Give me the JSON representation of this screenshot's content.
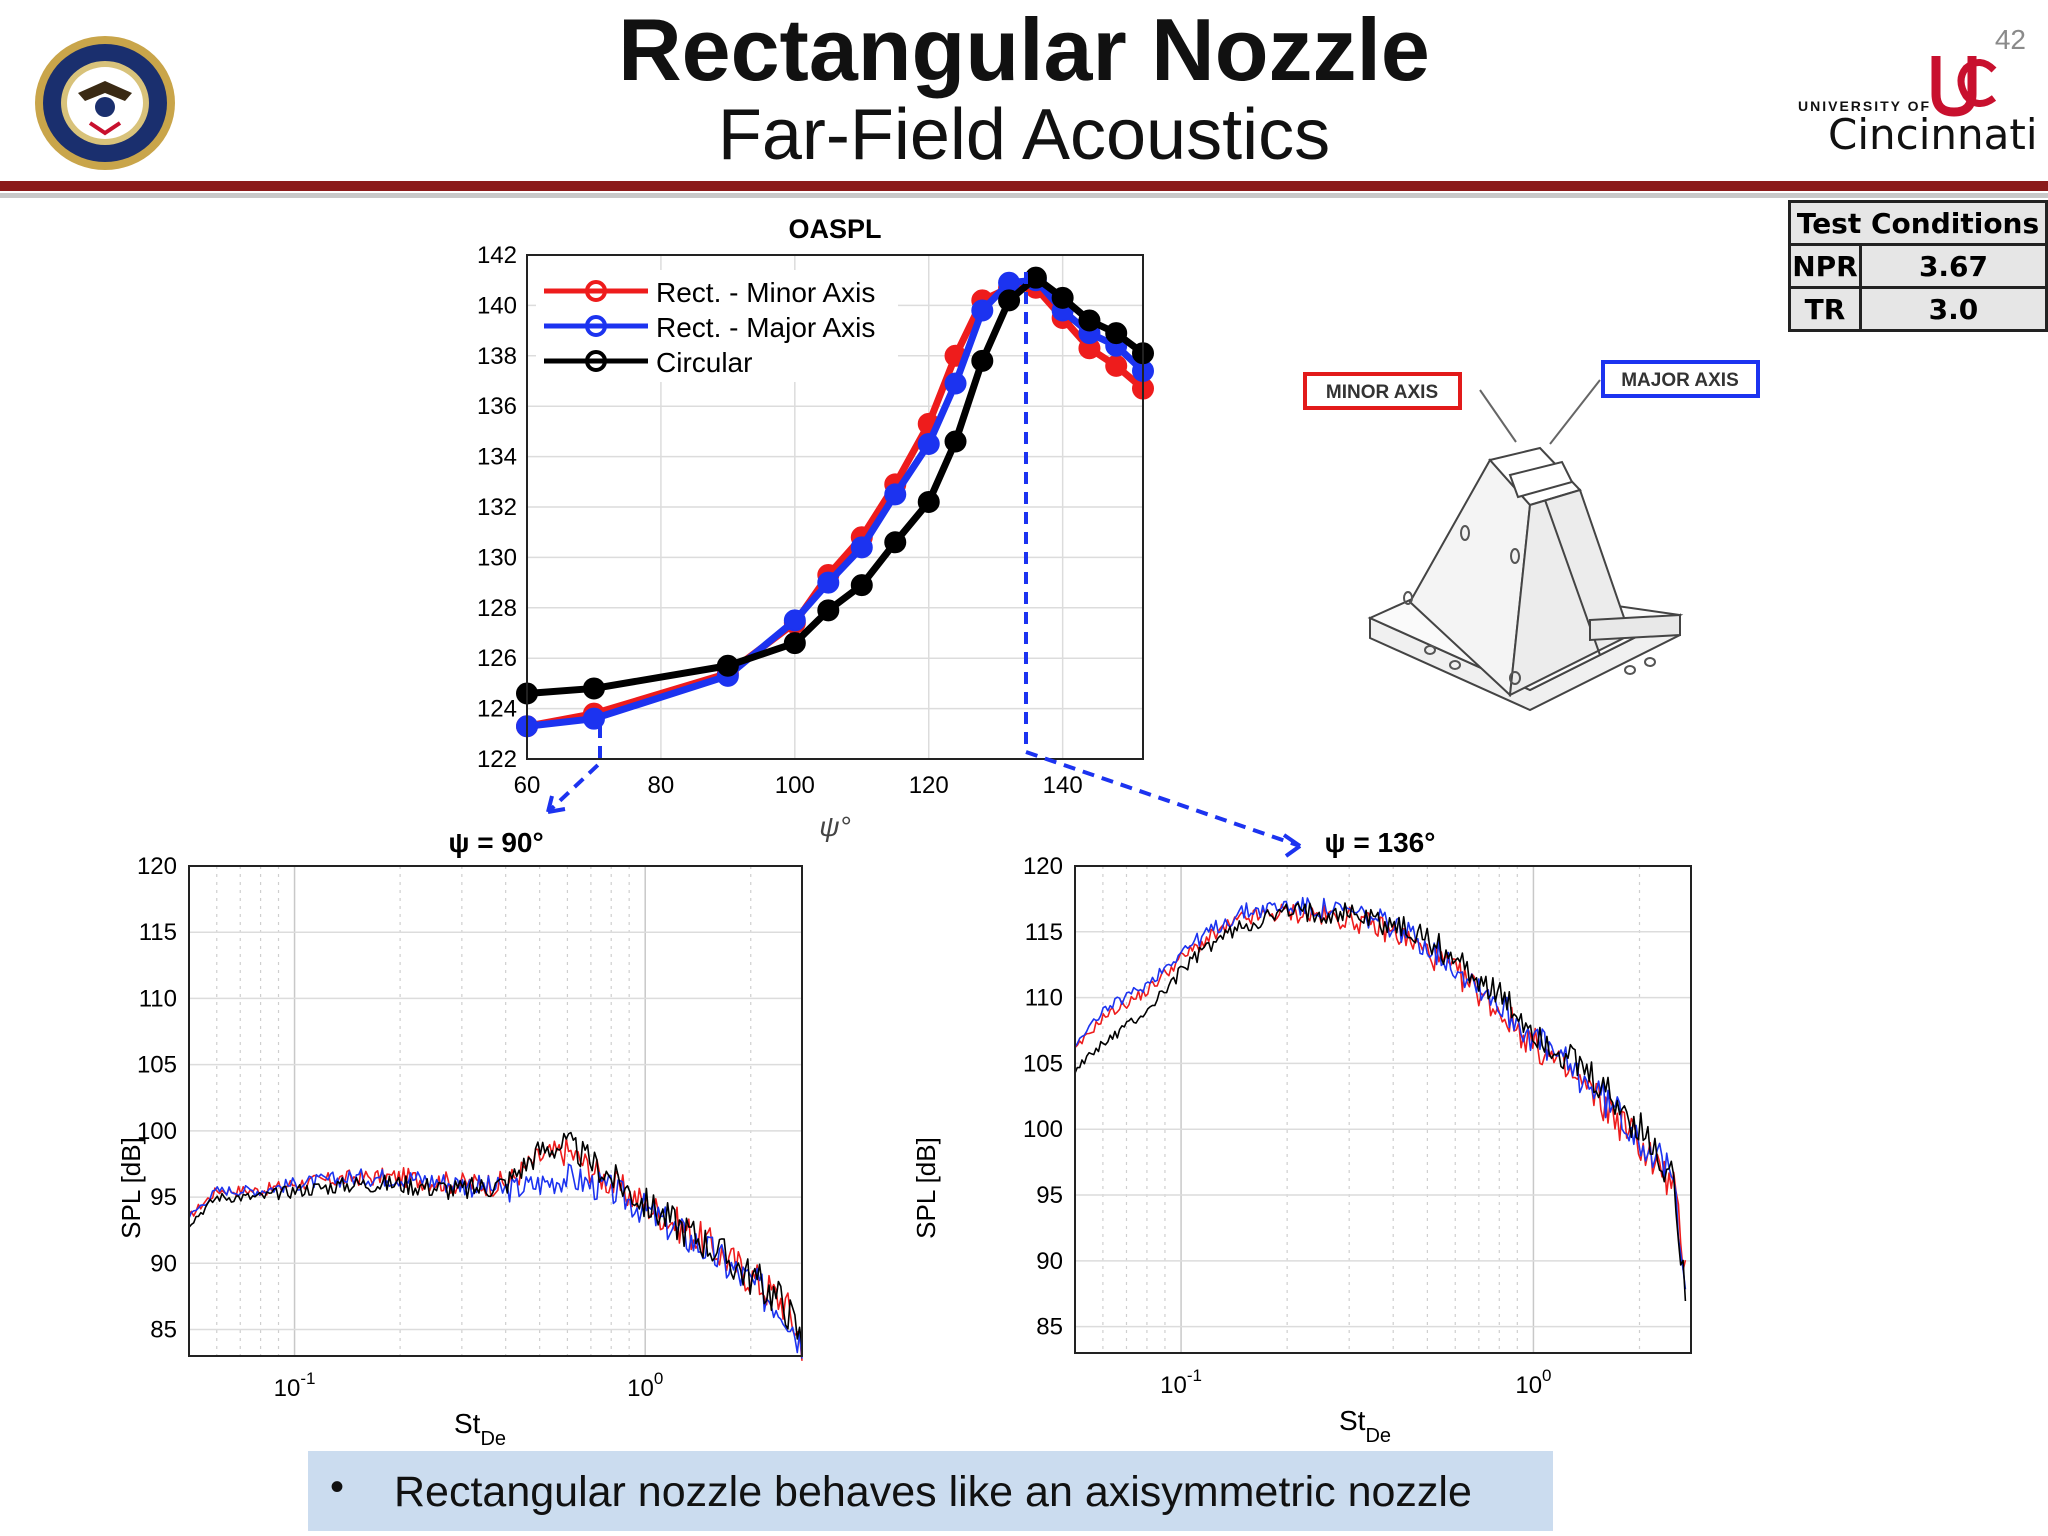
{
  "header": {
    "title": "Rectangular Nozzle",
    "subtitle": "Far-Field Acoustics",
    "slide_number": "42",
    "logo_left": "navy-seal",
    "logo_right": {
      "line1": "UNIVERSITY OF",
      "line2": "Cincinnati",
      "color": "#c8102e"
    }
  },
  "test_conditions": {
    "title": "Test Conditions",
    "rows": [
      {
        "label": "NPR",
        "value": "3.67"
      },
      {
        "label": "TR",
        "value": "3.0"
      }
    ]
  },
  "nozzle_diagram": {
    "minor_label": "MINOR AXIS",
    "major_label": "MAJOR AXIS"
  },
  "bullet": {
    "text": "Rectangular nozzle behaves like an axisymmetric nozzle"
  },
  "chart_data": [
    {
      "type": "line",
      "title": "OASPL",
      "xlabel": "ψ°",
      "ylabel": "",
      "xlim": [
        60,
        152
      ],
      "ylim": [
        122,
        142
      ],
      "xticks": [
        60,
        80,
        100,
        120,
        140
      ],
      "yticks": [
        122,
        124,
        126,
        128,
        130,
        132,
        134,
        136,
        138,
        140,
        142
      ],
      "grid": true,
      "legend": "top-left",
      "series": [
        {
          "name": "Rect. - Minor Axis",
          "color": "#ee1c1c",
          "x": [
            60,
            70,
            90,
            100,
            105,
            110,
            115,
            120,
            124,
            128,
            132,
            136,
            140,
            144,
            148,
            152
          ],
          "y": [
            123.3,
            123.8,
            125.4,
            127.4,
            129.3,
            130.8,
            132.9,
            135.3,
            138.0,
            140.2,
            140.7,
            140.7,
            139.5,
            138.3,
            137.6,
            136.7
          ]
        },
        {
          "name": "Rect. - Major Axis",
          "color": "#1c33f0",
          "x": [
            60,
            70,
            90,
            100,
            105,
            110,
            115,
            120,
            124,
            128,
            132,
            136,
            140,
            144,
            148,
            152
          ],
          "y": [
            123.3,
            123.6,
            125.3,
            127.5,
            129.0,
            130.4,
            132.5,
            134.5,
            136.9,
            139.8,
            140.9,
            141.0,
            139.8,
            138.9,
            138.4,
            137.4
          ]
        },
        {
          "name": "Circular",
          "color": "#000000",
          "x": [
            60,
            70,
            90,
            100,
            105,
            110,
            115,
            120,
            124,
            128,
            132,
            136,
            140,
            144,
            148,
            152
          ],
          "y": [
            124.6,
            124.8,
            125.7,
            126.6,
            127.9,
            128.9,
            130.6,
            132.2,
            134.6,
            137.8,
            140.2,
            141.1,
            140.3,
            139.4,
            138.9,
            138.1
          ]
        }
      ]
    },
    {
      "type": "line",
      "title": "ψ = 90°",
      "xlabel": "StDe",
      "ylabel": "SPL [dB]",
      "xscale": "log",
      "xlim": [
        0.05,
        2.8
      ],
      "ylim": [
        83,
        120
      ],
      "yticks": [
        85,
        90,
        95,
        100,
        105,
        110,
        115,
        120
      ],
      "xticks": [
        0.1,
        1
      ],
      "xtick_labels": [
        "10",
        "10"
      ],
      "xtick_exponents": [
        "-1",
        "0"
      ],
      "grid": true,
      "series": [
        {
          "color": "#ee1c1c",
          "x": [
            0.05,
            0.06,
            0.08,
            0.1,
            0.15,
            0.2,
            0.3,
            0.4,
            0.5,
            0.6,
            0.8,
            1.0,
            1.5,
            2.0,
            2.5,
            2.8
          ],
          "y": [
            93.5,
            95.5,
            95.5,
            96.0,
            96.5,
            96.5,
            96.0,
            96.0,
            98.0,
            98.5,
            96.0,
            94.5,
            91.5,
            89.0,
            87.0,
            84.0
          ]
        },
        {
          "color": "#1c33f0",
          "x": [
            0.05,
            0.06,
            0.08,
            0.1,
            0.15,
            0.2,
            0.3,
            0.4,
            0.5,
            0.6,
            0.8,
            1.0,
            1.5,
            2.0,
            2.5,
            2.8
          ],
          "y": [
            93.5,
            95.5,
            95.5,
            96.0,
            96.5,
            96.5,
            96.0,
            95.5,
            96.0,
            96.5,
            95.5,
            94.0,
            91.0,
            88.5,
            86.5,
            84.0
          ]
        },
        {
          "color": "#000000",
          "x": [
            0.05,
            0.06,
            0.08,
            0.1,
            0.15,
            0.2,
            0.3,
            0.4,
            0.5,
            0.6,
            0.8,
            1.0,
            1.5,
            2.0,
            2.5,
            2.8
          ],
          "y": [
            93.0,
            95.0,
            95.0,
            95.5,
            96.0,
            96.0,
            95.5,
            96.0,
            98.5,
            99.0,
            96.5,
            94.5,
            91.5,
            89.0,
            87.0,
            84.0
          ]
        }
      ]
    },
    {
      "type": "line",
      "title": "ψ = 136°",
      "xlabel": "StDe",
      "ylabel": "SPL [dB]",
      "xscale": "log",
      "xlim": [
        0.05,
        2.8
      ],
      "ylim": [
        83,
        120
      ],
      "yticks": [
        85,
        90,
        95,
        100,
        105,
        110,
        115,
        120
      ],
      "xticks": [
        0.1,
        1
      ],
      "xtick_labels": [
        "10",
        "10"
      ],
      "xtick_exponents": [
        "-1",
        "0"
      ],
      "grid": true,
      "series": [
        {
          "color": "#ee1c1c",
          "x": [
            0.05,
            0.06,
            0.08,
            0.1,
            0.12,
            0.15,
            0.2,
            0.3,
            0.4,
            0.5,
            0.7,
            1.0,
            1.5,
            2.0,
            2.5,
            2.7
          ],
          "y": [
            106.0,
            108.5,
            110.5,
            113.0,
            114.5,
            116.0,
            116.5,
            116.0,
            115.0,
            113.5,
            110.5,
            106.5,
            102.5,
            99.0,
            95.5,
            89.0
          ]
        },
        {
          "color": "#1c33f0",
          "x": [
            0.05,
            0.06,
            0.08,
            0.1,
            0.12,
            0.15,
            0.2,
            0.3,
            0.4,
            0.5,
            0.7,
            1.0,
            1.5,
            2.0,
            2.5,
            2.7
          ],
          "y": [
            106.5,
            109.0,
            111.0,
            113.5,
            115.0,
            116.5,
            117.0,
            116.5,
            115.5,
            114.0,
            111.0,
            107.0,
            103.0,
            99.5,
            96.0,
            89.0
          ]
        },
        {
          "color": "#000000",
          "x": [
            0.05,
            0.06,
            0.08,
            0.1,
            0.12,
            0.15,
            0.2,
            0.3,
            0.4,
            0.5,
            0.7,
            1.0,
            1.5,
            2.0,
            2.5,
            2.7
          ],
          "y": [
            104.5,
            106.5,
            109.0,
            112.0,
            114.0,
            115.5,
            116.5,
            116.5,
            115.5,
            114.5,
            111.5,
            107.5,
            103.5,
            100.0,
            96.0,
            88.0
          ]
        }
      ]
    }
  ]
}
